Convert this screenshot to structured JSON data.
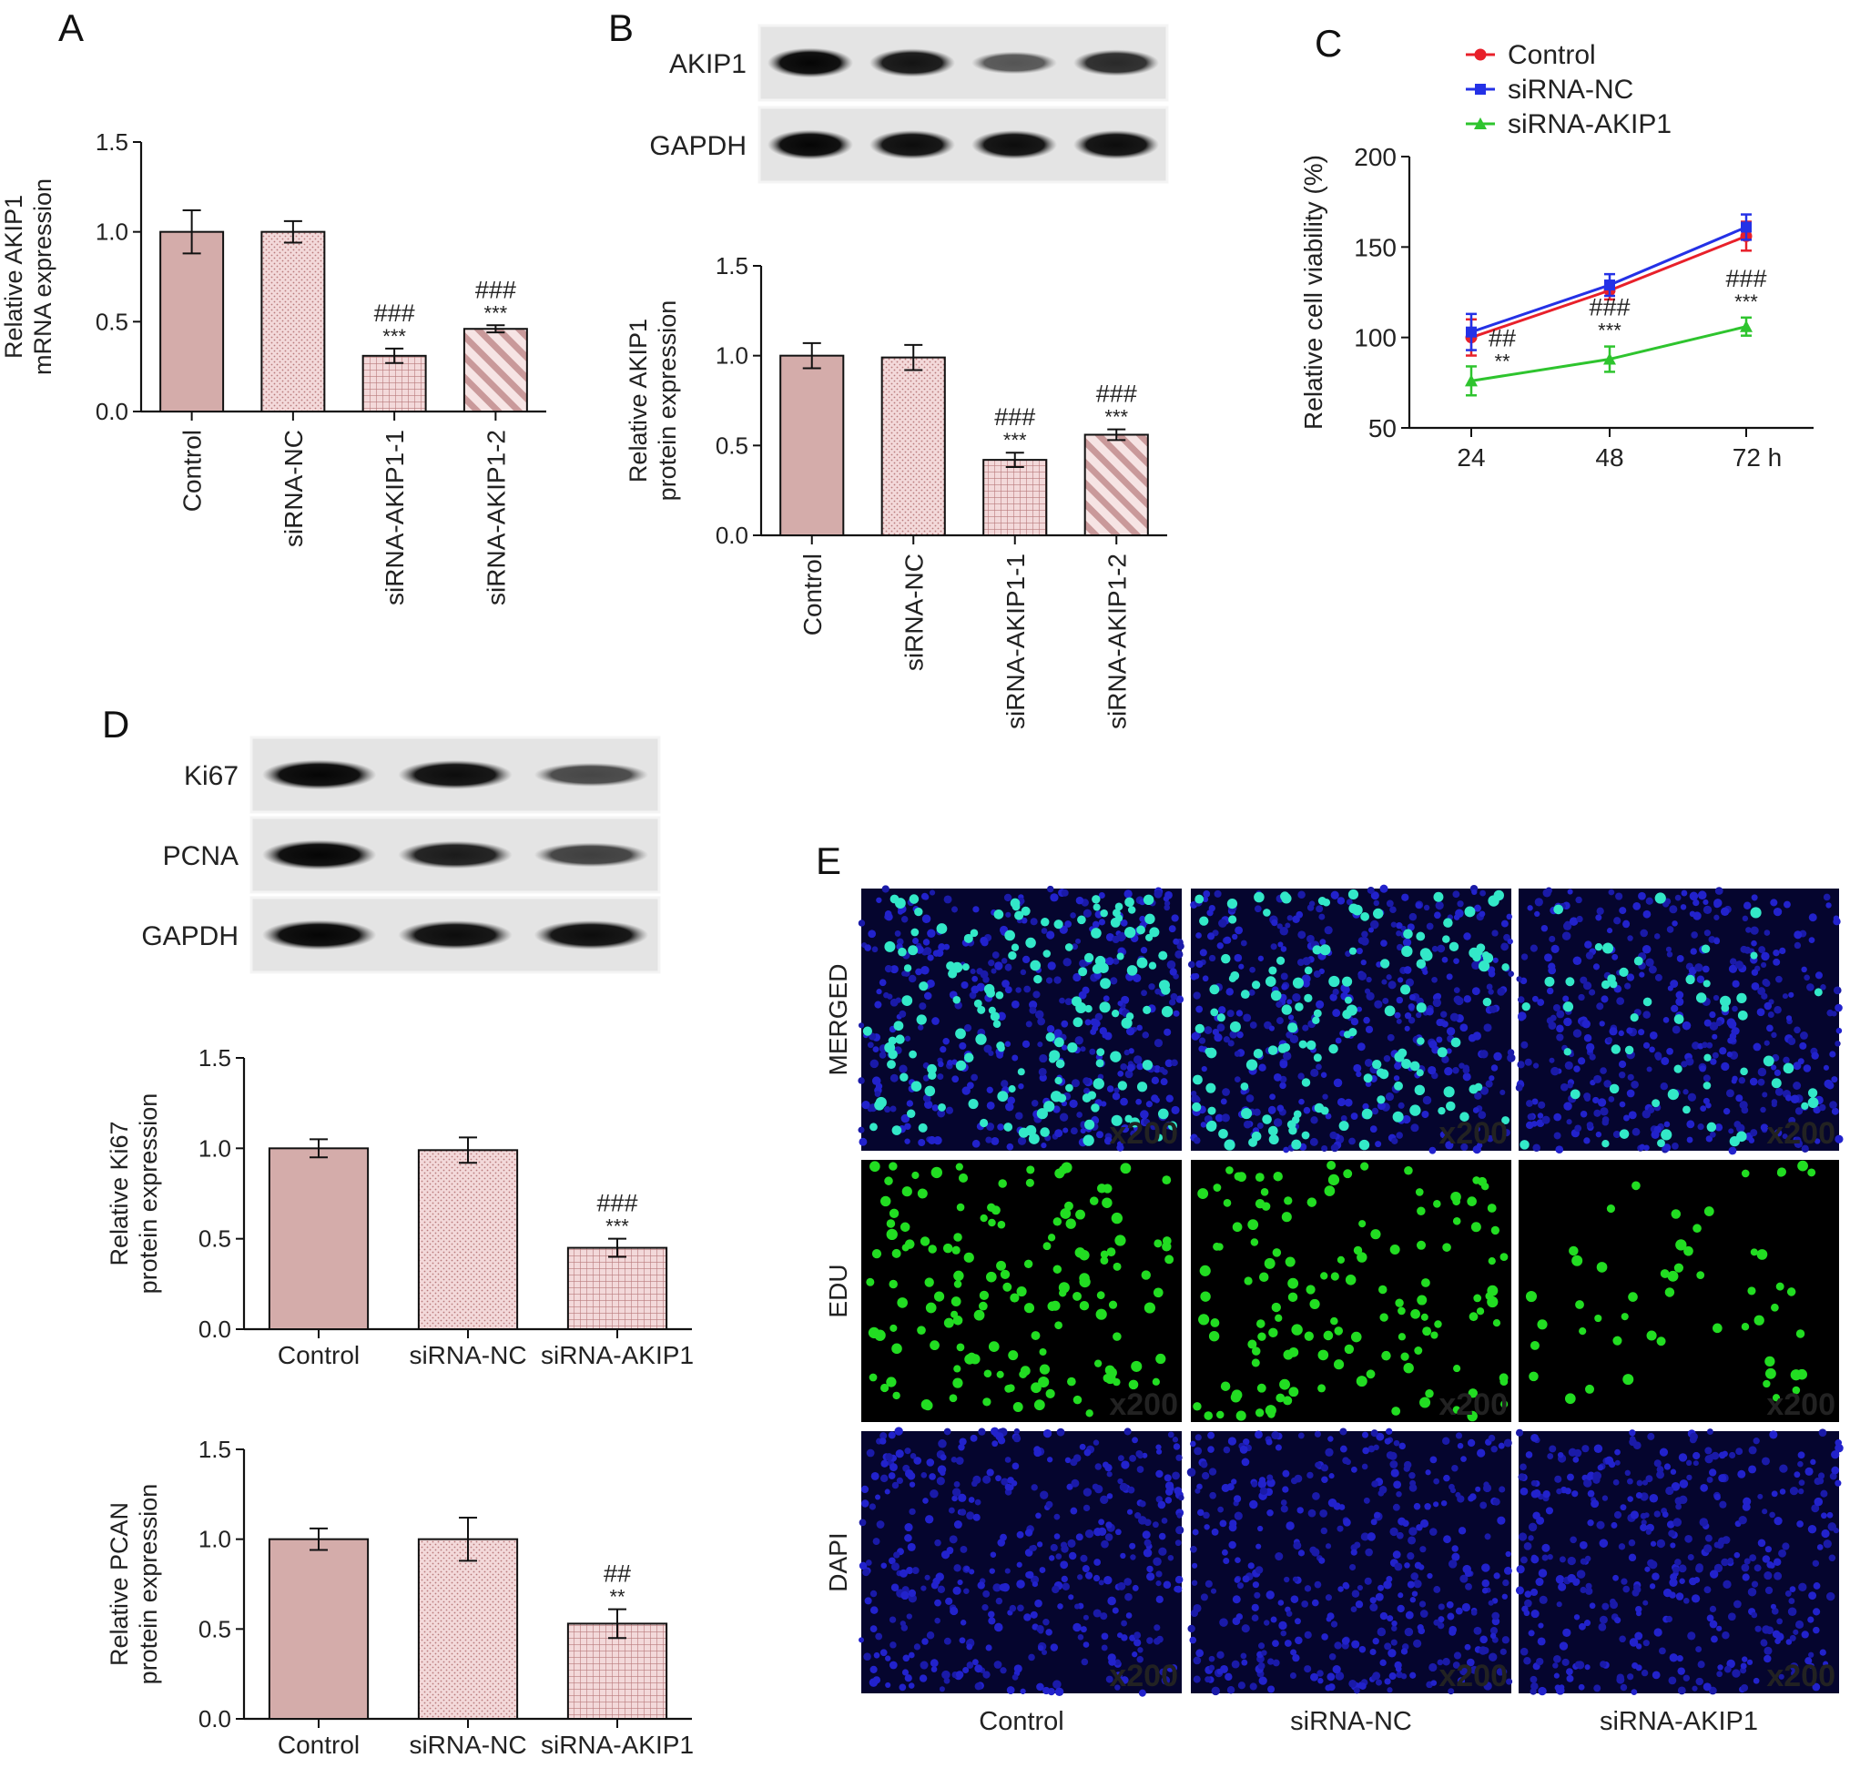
{
  "panels": {
    "A": {
      "letter": "A",
      "chart_data": {
        "type": "bar",
        "categories": [
          "Control",
          "siRNA-NC",
          "siRNA-AKIP1-1",
          "siRNA-AKIP1-2"
        ],
        "values": [
          1.0,
          1.0,
          0.31,
          0.46
        ],
        "errors": [
          0.12,
          0.06,
          0.04,
          0.02
        ],
        "annotations": [
          [
            "",
            ""
          ],
          [
            "",
            ""
          ],
          [
            "###",
            "***"
          ],
          [
            "###",
            "***"
          ]
        ],
        "ylabel": [
          "Relative AKIP1",
          "mRNA expression"
        ],
        "ylim": [
          0,
          1.5
        ],
        "yticks": [
          "0.0",
          "0.5",
          "1.0",
          "1.5"
        ],
        "patterns": [
          "solid",
          "dots",
          "grid",
          "diag"
        ]
      }
    },
    "B": {
      "letter": "B",
      "blot": {
        "labels": [
          "AKIP1",
          "GAPDH"
        ],
        "lanes": 4,
        "intensity": [
          [
            1.0,
            0.9,
            0.45,
            0.75
          ],
          [
            1.0,
            0.95,
            0.95,
            0.95
          ]
        ]
      },
      "chart_data": {
        "type": "bar",
        "categories": [
          "Control",
          "siRNA-NC",
          "siRNA-AKIP1-1",
          "siRNA-AKIP1-2"
        ],
        "values": [
          1.0,
          0.99,
          0.42,
          0.56
        ],
        "errors": [
          0.07,
          0.07,
          0.04,
          0.03
        ],
        "annotations": [
          [
            "",
            ""
          ],
          [
            "",
            ""
          ],
          [
            "###",
            "***"
          ],
          [
            "###",
            "***"
          ]
        ],
        "ylabel": [
          "Relative AKIP1",
          "protein expression"
        ],
        "ylim": [
          0,
          1.5
        ],
        "yticks": [
          "0.0",
          "0.5",
          "1.0",
          "1.5"
        ],
        "patterns": [
          "solid",
          "dots",
          "grid",
          "diag"
        ]
      }
    },
    "C": {
      "letter": "C",
      "chart_data": {
        "type": "line",
        "x": [
          "24",
          "48",
          "72 h"
        ],
        "series": [
          {
            "name": "Control",
            "color": "#e8202a",
            "marker": "circle",
            "values": [
              100,
              126,
              156
            ],
            "errors": [
              10,
              5,
              8
            ]
          },
          {
            "name": "siRNA-NC",
            "color": "#2431e6",
            "marker": "square",
            "values": [
              103,
              129,
              161
            ],
            "errors": [
              10,
              6,
              7
            ]
          },
          {
            "name": "siRNA-AKIP1",
            "color": "#2ec42e",
            "marker": "triangle",
            "values": [
              76,
              88,
              106
            ],
            "errors": [
              8,
              7,
              5
            ]
          }
        ],
        "annotations": [
          [
            "##",
            "**"
          ],
          [
            "###",
            "***"
          ],
          [
            "###",
            "***"
          ]
        ],
        "ylabel": "Relative cell viability (%)",
        "ylim": [
          50,
          200
        ],
        "yticks": [
          "50",
          "100",
          "150",
          "200"
        ],
        "legend": "top"
      }
    },
    "D": {
      "letter": "D",
      "blot": {
        "labels": [
          "Ki67",
          "PCNA",
          "GAPDH"
        ],
        "lanes": 3,
        "intensity": [
          [
            1.0,
            0.95,
            0.55
          ],
          [
            1.0,
            0.85,
            0.6
          ],
          [
            1.0,
            0.95,
            0.95
          ]
        ]
      },
      "charts": [
        {
          "type": "bar",
          "categories": [
            "Control",
            "siRNA-NC",
            "siRNA-AKIP1"
          ],
          "values": [
            1.0,
            0.99,
            0.45
          ],
          "errors": [
            0.05,
            0.07,
            0.05
          ],
          "annotations": [
            [
              "",
              ""
            ],
            [
              "",
              ""
            ],
            [
              "###",
              "***"
            ]
          ],
          "ylabel": [
            "Relative Ki67",
            "protein expression"
          ],
          "ylim": [
            0,
            1.5
          ],
          "yticks": [
            "0.0",
            "0.5",
            "1.0",
            "1.5"
          ],
          "patterns": [
            "solid",
            "dots",
            "grid"
          ]
        },
        {
          "type": "bar",
          "categories": [
            "Control",
            "siRNA-NC",
            "siRNA-AKIP1"
          ],
          "values": [
            1.0,
            1.0,
            0.53
          ],
          "errors": [
            0.06,
            0.12,
            0.08
          ],
          "annotations": [
            [
              "",
              ""
            ],
            [
              "",
              ""
            ],
            [
              "##",
              "**"
            ]
          ],
          "ylabel": [
            "Relative PCAN",
            "protein expression"
          ],
          "ylim": [
            0,
            1.5
          ],
          "yticks": [
            "0.0",
            "0.5",
            "1.0",
            "1.5"
          ],
          "patterns": [
            "solid",
            "dots",
            "grid"
          ]
        }
      ]
    },
    "E": {
      "letter": "E",
      "rows": [
        "MERGED",
        "EDU",
        "DAPI"
      ],
      "columns": [
        "Control",
        "siRNA-NC",
        "siRNA-AKIP1"
      ],
      "magnification": "x200",
      "edu_density": [
        1.0,
        0.9,
        0.35
      ]
    }
  },
  "colors": {
    "bar_fill": "#d4acaa",
    "pattern_fill": "#f3d9da",
    "pattern_ink": "#b97a7c",
    "axis": "#111111"
  }
}
